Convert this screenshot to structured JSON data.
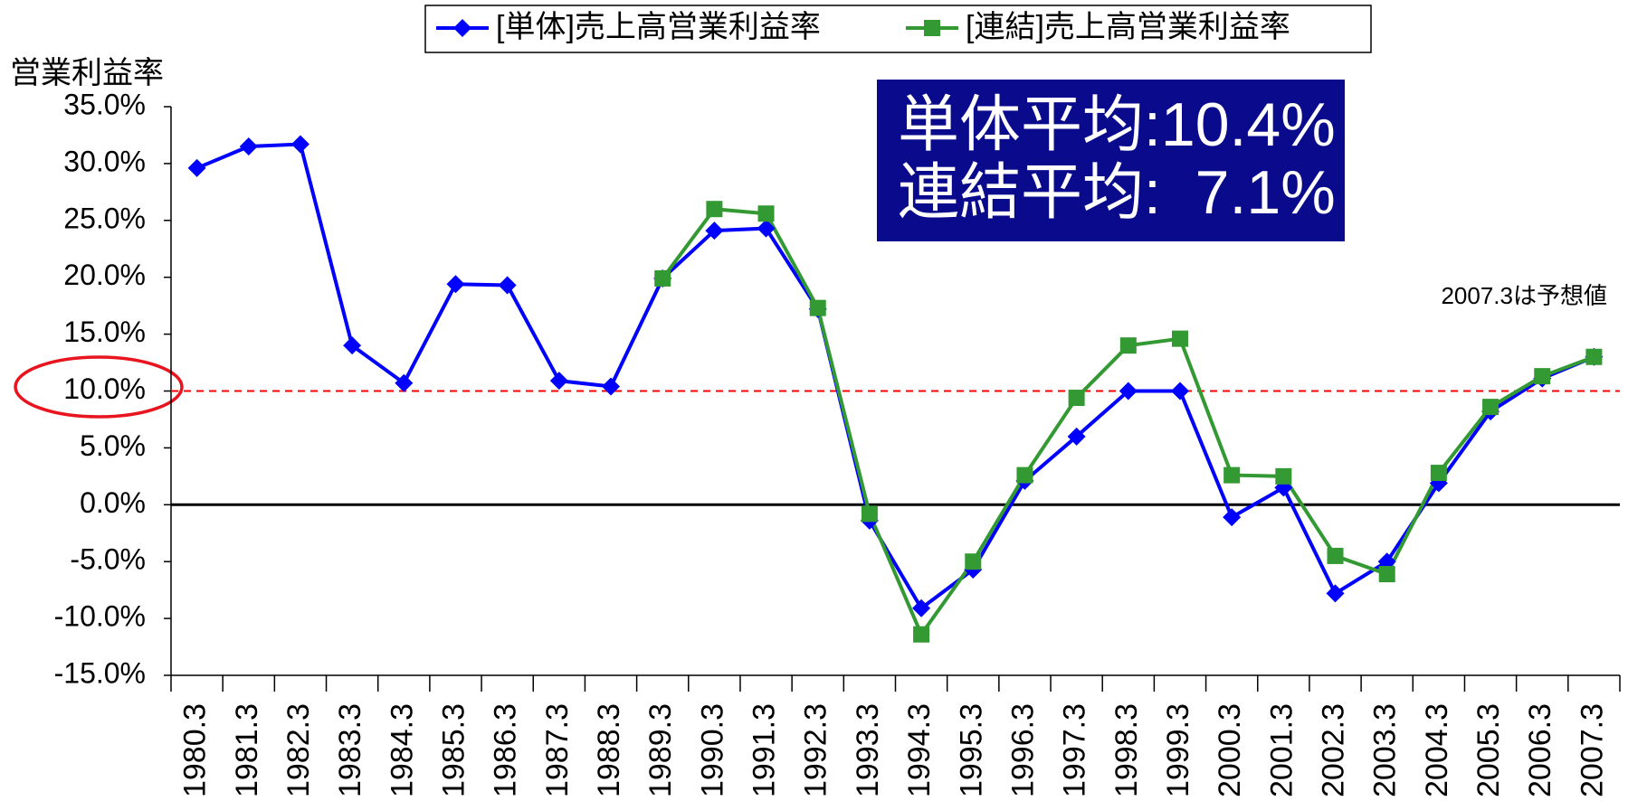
{
  "chart_data": {
    "type": "line",
    "y_axis_label": "営業利益率",
    "categories": [
      "1980.3",
      "1981.3",
      "1982.3",
      "1983.3",
      "1984.3",
      "1985.3",
      "1986.3",
      "1987.3",
      "1988.3",
      "1989.3",
      "1990.3",
      "1991.3",
      "1992.3",
      "1993.3",
      "1994.3",
      "1995.3",
      "1996.3",
      "1997.3",
      "1998.3",
      "1999.3",
      "2000.3",
      "2001.3",
      "2002.3",
      "2003.3",
      "2004.3",
      "2005.3",
      "2006.3",
      "2007.3"
    ],
    "series": [
      {
        "name": "[単体]売上高営業利益率",
        "color": "#0000ff",
        "marker": "diamond",
        "values": [
          29.6,
          31.5,
          31.7,
          14.0,
          10.7,
          19.4,
          19.3,
          10.9,
          10.4,
          19.9,
          24.1,
          24.3,
          17.2,
          -1.4,
          -9.1,
          -5.7,
          2.1,
          6.0,
          10.0,
          10.0,
          -1.1,
          1.5,
          -7.8,
          -5.0,
          1.9,
          8.2,
          11.1,
          13.0
        ]
      },
      {
        "name": "[連結]売上高営業利益率",
        "color": "#339933",
        "marker": "square",
        "values": [
          null,
          null,
          null,
          null,
          null,
          null,
          null,
          null,
          null,
          19.9,
          26.0,
          25.6,
          17.3,
          -0.8,
          -11.4,
          -5.0,
          2.6,
          9.4,
          14.0,
          14.6,
          2.6,
          2.5,
          -4.5,
          -6.1,
          2.8,
          8.6,
          11.3,
          13.0
        ]
      }
    ],
    "ylim": [
      -15,
      35
    ],
    "yticks": [
      {
        "value": -15,
        "label": "-15.0%"
      },
      {
        "value": -10,
        "label": "-10.0%"
      },
      {
        "value": -5,
        "label": "-5.0%"
      },
      {
        "value": 0,
        "label": "0.0%"
      },
      {
        "value": 5,
        "label": "5.0%"
      },
      {
        "value": 10,
        "label": "10.0%"
      },
      {
        "value": 15,
        "label": "15.0%"
      },
      {
        "value": 20,
        "label": "20.0%"
      },
      {
        "value": 25,
        "label": "25.0%"
      },
      {
        "value": 30,
        "label": "30.0%"
      },
      {
        "value": 35,
        "label": "35.0%"
      }
    ],
    "reference_line": {
      "value": 10,
      "color": "#ff0000"
    },
    "annotations": [
      "単体平均:10.4%",
      "連結平均:  7.1%"
    ],
    "note": "2007.3は予想値",
    "legend": "top"
  }
}
